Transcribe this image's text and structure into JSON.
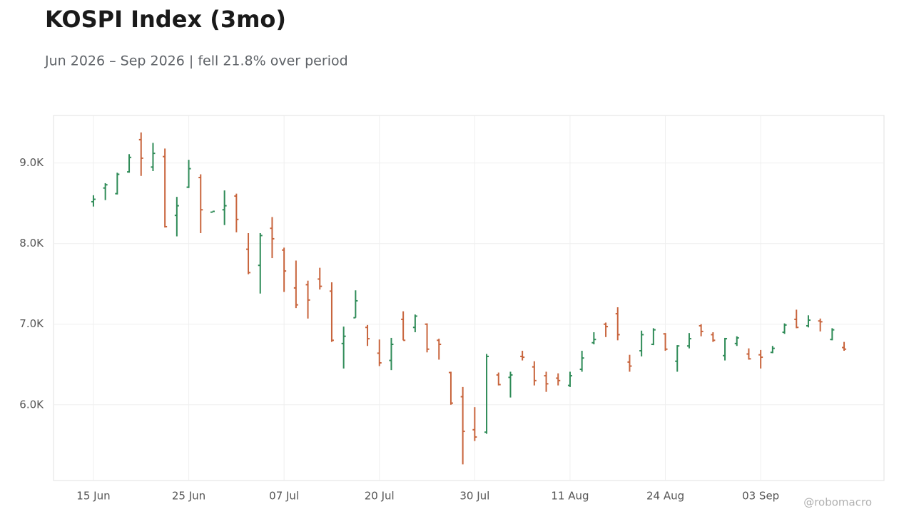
{
  "chart_data": {
    "type": "ohlc",
    "title": "KOSPI Index (3mo)",
    "subtitle": "Jun 2026 – Sep 2026 | fell 21.8% over period",
    "credit": "@robomacro",
    "categories": [
      "15 Jun",
      null,
      null,
      null,
      null,
      null,
      null,
      null,
      "25 Jun",
      null,
      null,
      null,
      null,
      null,
      null,
      null,
      "07 Jul",
      null,
      null,
      null,
      null,
      null,
      null,
      null,
      "20 Jul",
      null,
      null,
      null,
      null,
      null,
      null,
      null,
      "30 Jul",
      null,
      null,
      null,
      null,
      null,
      null,
      null,
      "11 Aug",
      null,
      null,
      null,
      null,
      null,
      null,
      null,
      "24 Aug",
      null,
      null,
      null,
      null,
      null,
      null,
      null,
      "03 Sep",
      null,
      null,
      null,
      null,
      null,
      null,
      null
    ],
    "open": [
      8520,
      8690,
      8620,
      8890,
      9290,
      8950,
      9080,
      8350,
      8700,
      8820,
      8390,
      8420,
      8590,
      7930,
      7730,
      8190,
      7920,
      7450,
      7490,
      7560,
      7410,
      6760,
      7080,
      6960,
      6640,
      6550,
      7060,
      6960,
      7000,
      6800,
      6400,
      6100,
      5690,
      5660,
      6370,
      6340,
      6600,
      6470,
      6360,
      6330,
      6240,
      6440,
      6770,
      7000,
      7130,
      6530,
      6670,
      6750,
      6880,
      6540,
      6730,
      6980,
      6870,
      6610,
      6760,
      6630,
      6620,
      6650,
      6900,
      7060,
      6980,
      7040,
      6810,
      6710
    ],
    "high": [
      8600,
      8750,
      8880,
      9110,
      9380,
      9250,
      9180,
      8580,
      9040,
      8860,
      8400,
      8660,
      8620,
      8130,
      8130,
      8330,
      7950,
      7790,
      7540,
      7700,
      7520,
      6970,
      7420,
      6990,
      6810,
      6830,
      7160,
      7120,
      7010,
      6820,
      6410,
      6220,
      5970,
      6630,
      6400,
      6410,
      6670,
      6540,
      6410,
      6390,
      6410,
      6670,
      6900,
      7020,
      7210,
      6620,
      6920,
      6950,
      6890,
      6740,
      6890,
      7000,
      6900,
      6830,
      6850,
      6700,
      6680,
      6730,
      7010,
      7180,
      7110,
      7070,
      6950,
      6780
    ],
    "low": [
      8460,
      8540,
      8610,
      8880,
      8840,
      8900,
      8200,
      8090,
      8690,
      8130,
      8390,
      8230,
      8140,
      7620,
      7380,
      7820,
      7400,
      7200,
      7070,
      7430,
      6780,
      6450,
      7080,
      6730,
      6480,
      6430,
      6800,
      6900,
      6650,
      6560,
      6000,
      5260,
      5550,
      5640,
      6240,
      6090,
      6550,
      6240,
      6160,
      6240,
      6220,
      6410,
      6750,
      6840,
      6800,
      6410,
      6600,
      6740,
      6670,
      6410,
      6700,
      6850,
      6780,
      6550,
      6730,
      6560,
      6450,
      6640,
      6880,
      6950,
      6960,
      6910,
      6800,
      6670
    ],
    "close": [
      8550,
      8730,
      8860,
      9070,
      9060,
      9120,
      8210,
      8470,
      8930,
      8420,
      8400,
      8470,
      8300,
      7640,
      8100,
      8060,
      7660,
      7240,
      7300,
      7470,
      6800,
      6850,
      7290,
      6820,
      6520,
      6750,
      6800,
      7100,
      6690,
      6750,
      6020,
      5670,
      5600,
      6600,
      6250,
      6370,
      6590,
      6300,
      6260,
      6300,
      6360,
      6580,
      6810,
      6970,
      6870,
      6480,
      6870,
      6930,
      6690,
      6730,
      6820,
      6910,
      6800,
      6820,
      6830,
      6570,
      6590,
      6700,
      6990,
      6960,
      7050,
      7030,
      6930,
      6690
    ],
    "up_color": "#2e8b57",
    "down_color": "#c8643c",
    "ylim": [
      5060,
      9590
    ],
    "yticks": [
      {
        "value": 6000,
        "label": "6.0K"
      },
      {
        "value": 7000,
        "label": "7.0K"
      },
      {
        "value": 8000,
        "label": "8.0K"
      },
      {
        "value": 9000,
        "label": "9.0K"
      }
    ],
    "grid": true
  }
}
